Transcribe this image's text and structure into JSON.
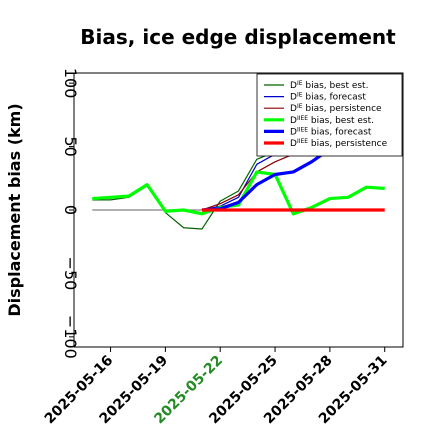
{
  "chart_data": {
    "type": "line",
    "title": "Bias, ice edge displacement",
    "ylabel": "Displacement bias (km)",
    "xlabel": "",
    "ylim": [
      -108,
      108
    ],
    "xlim": [
      "2025-05-14",
      "2025-06-01"
    ],
    "yticks": [
      -100,
      -50,
      0,
      50,
      100
    ],
    "yticklabels": [
      "−100",
      "−50",
      "0",
      "50",
      "100"
    ],
    "xticks": [
      "2025-05-16",
      "2025-05-19",
      "2025-05-22",
      "2025-05-25",
      "2025-05-28",
      "2025-05-31"
    ],
    "xtick_colors": [
      "#000000",
      "#000000",
      "#228b22",
      "#000000",
      "#000000",
      "#000000"
    ],
    "legend_location": "upper right",
    "reference_line": {
      "y": 0,
      "color": "#808080",
      "from": "2025-05-15",
      "to": "2025-05-21"
    },
    "series": [
      {
        "name": "D^IE bias, best est.",
        "legend_super": "IE",
        "legend_text": " bias, best est.",
        "color": "#006400",
        "width": 1.2,
        "x": [
          "2025-05-15",
          "2025-05-16",
          "2025-05-17",
          "2025-05-18",
          "2025-05-19",
          "2025-05-20",
          "2025-05-21",
          "2025-05-22",
          "2025-05-23",
          "2025-05-24",
          "2025-05-25",
          "2025-05-26",
          "2025-05-27",
          "2025-05-28",
          "2025-05-29",
          "2025-05-30",
          "2025-05-31"
        ],
        "values": [
          8,
          8,
          10,
          19,
          -2,
          -14,
          -15,
          7,
          15,
          40,
          46,
          47,
          49,
          56,
          58,
          58,
          56
        ]
      },
      {
        "name": "D^IE bias, forecast",
        "legend_super": "IE",
        "legend_text": " bias, forecast",
        "color": "#0000cd",
        "width": 1.2,
        "x": [
          "2025-05-21",
          "2025-05-22",
          "2025-05-23",
          "2025-05-24",
          "2025-05-25",
          "2025-05-26",
          "2025-05-27",
          "2025-05-28",
          "2025-05-29",
          "2025-05-30",
          "2025-05-31"
        ],
        "values": [
          0,
          3,
          10,
          36,
          44,
          45,
          49,
          54,
          57,
          58,
          56
        ]
      },
      {
        "name": "D^IE bias, persistence",
        "legend_super": "IE",
        "legend_text": " bias, persistence",
        "color": "#8b0000",
        "width": 1.2,
        "x": [
          "2025-05-21",
          "2025-05-22",
          "2025-05-23",
          "2025-05-24",
          "2025-05-25",
          "2025-05-26",
          "2025-05-27",
          "2025-05-28",
          "2025-05-29",
          "2025-05-30",
          "2025-05-31"
        ],
        "values": [
          0,
          5,
          12,
          30,
          38,
          44,
          48,
          53,
          57,
          57,
          55
        ]
      },
      {
        "name": "D^IIEE bias, best est.",
        "legend_super": "IIEE",
        "legend_text": " bias, best est.",
        "color": "#00ff00",
        "width": 3.2,
        "x": [
          "2025-05-15",
          "2025-05-16",
          "2025-05-17",
          "2025-05-18",
          "2025-05-19",
          "2025-05-20",
          "2025-05-21",
          "2025-05-22",
          "2025-05-23",
          "2025-05-24",
          "2025-05-25",
          "2025-05-26",
          "2025-05-27",
          "2025-05-28",
          "2025-05-29",
          "2025-05-30",
          "2025-05-31"
        ],
        "values": [
          9,
          10,
          11,
          20,
          -1,
          0,
          -3,
          2,
          4,
          30,
          28,
          -3,
          2,
          9,
          10,
          18,
          17
        ]
      },
      {
        "name": "D^IIEE bias, forecast",
        "legend_super": "IIEE",
        "legend_text": " bias, forecast",
        "color": "#0000ff",
        "width": 3.2,
        "x": [
          "2025-05-21",
          "2025-05-22",
          "2025-05-23",
          "2025-05-24",
          "2025-05-25",
          "2025-05-26",
          "2025-05-27",
          "2025-05-28",
          "2025-05-29",
          "2025-05-30",
          "2025-05-31"
        ],
        "values": [
          0,
          1,
          6,
          20,
          28,
          30,
          38,
          48,
          56,
          59,
          58
        ]
      },
      {
        "name": "D^IIEE bias, persistence",
        "legend_super": "IIEE",
        "legend_text": " bias, persistence",
        "color": "#ff0000",
        "width": 3.2,
        "x": [
          "2025-05-21",
          "2025-05-22",
          "2025-05-23",
          "2025-05-24",
          "2025-05-25",
          "2025-05-26",
          "2025-05-27",
          "2025-05-28",
          "2025-05-29",
          "2025-05-30",
          "2025-05-31"
        ],
        "values": [
          0,
          0,
          0,
          0,
          0,
          0,
          0,
          0,
          0,
          0,
          0
        ]
      }
    ]
  }
}
